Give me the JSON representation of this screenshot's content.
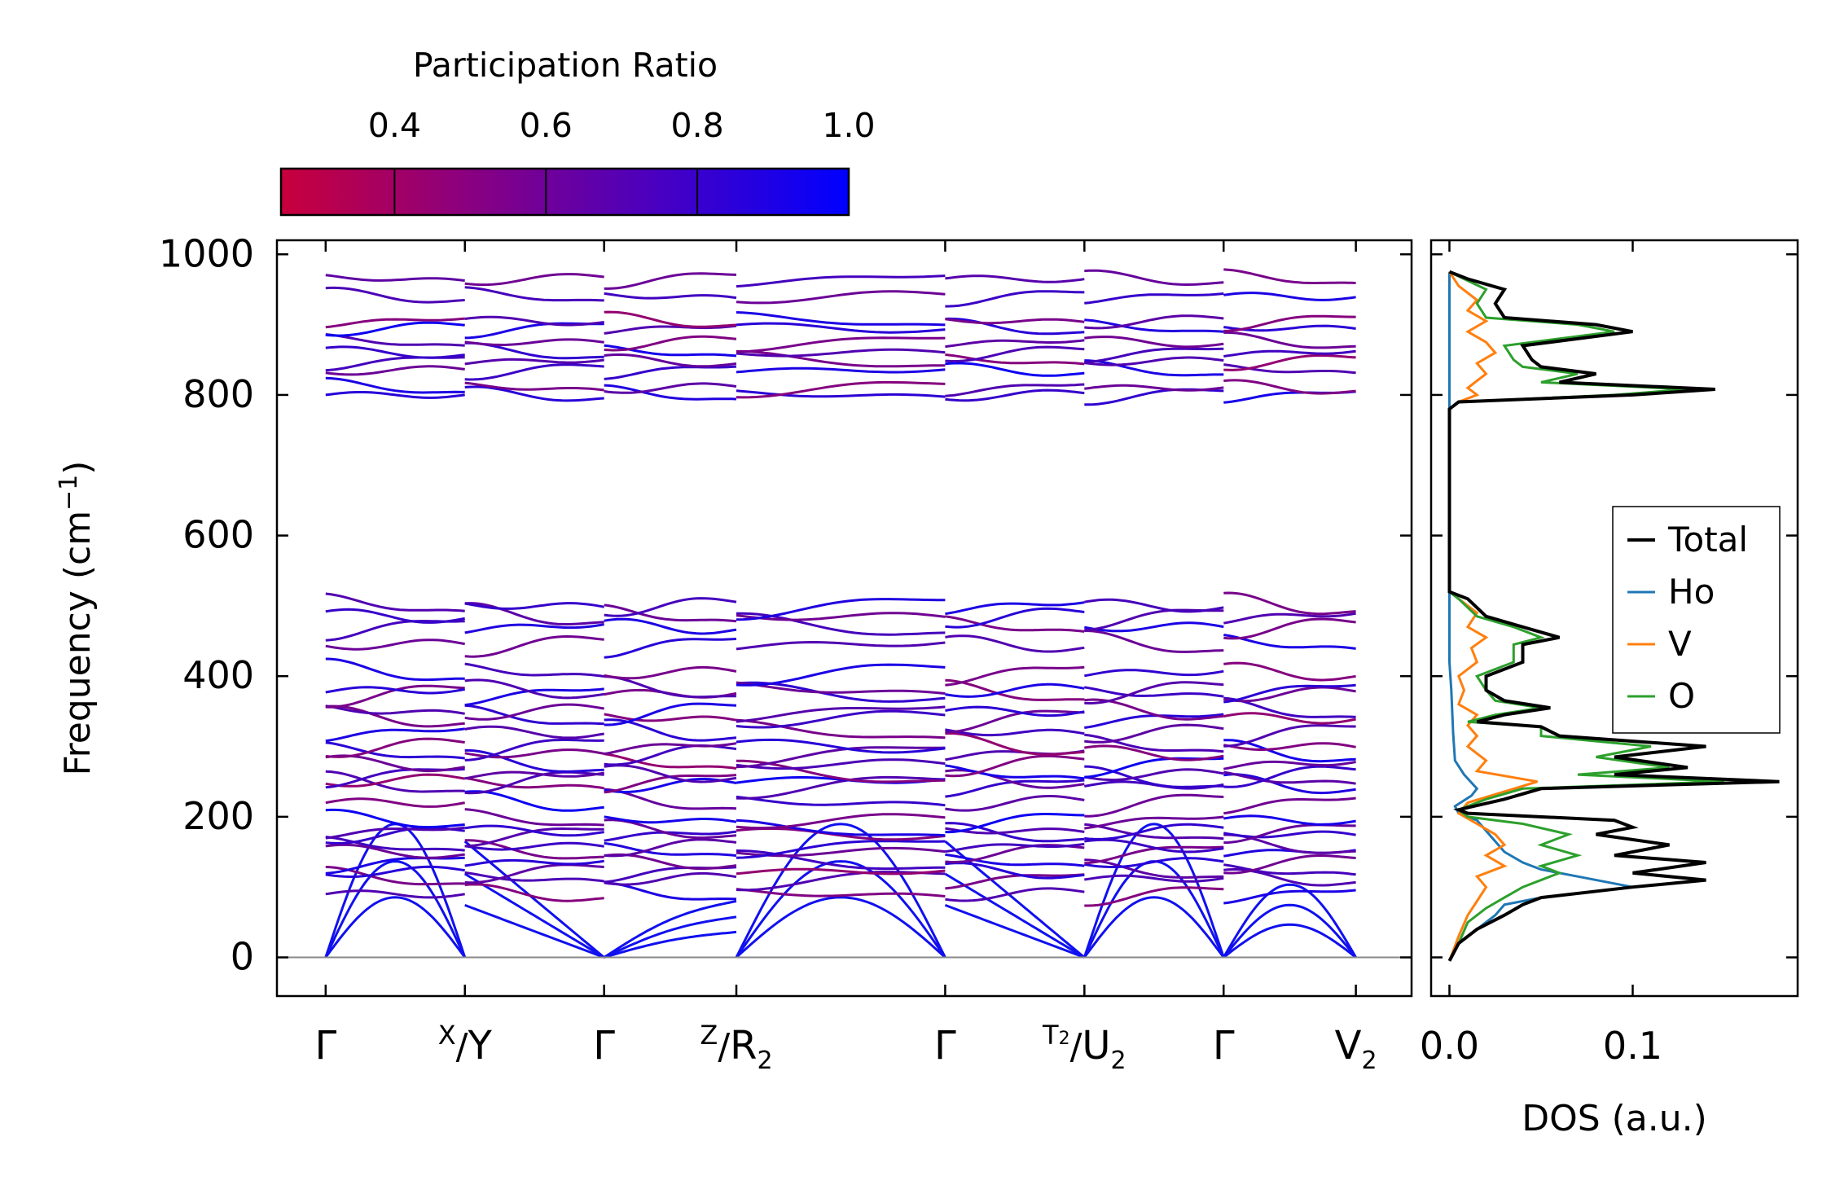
{
  "chart_data": [
    {
      "type": "line",
      "subtype": "phonon-band-structure",
      "ylabel": "Frequency (cm",
      "ylabel_sup": "−1",
      "ylabel_close": ")",
      "ylim": [
        -55,
        1020
      ],
      "xlim": [
        -0.07,
        1.56
      ],
      "yticks": [
        "0",
        "200",
        "400",
        "600",
        "800",
        "1000"
      ],
      "ytick_values": [
        0,
        200,
        400,
        600,
        800,
        1000
      ],
      "kpoints": [
        {
          "main": "Γ",
          "sub": "",
          "pos": 0
        },
        {
          "pre": "X",
          "main": "Y",
          "pos": 0.2
        },
        {
          "main": "Γ",
          "sub": "",
          "pos": 0.4
        },
        {
          "pre": "Z",
          "main": "R",
          "sub": "2",
          "pos": 0.59
        },
        {
          "main": "Γ",
          "sub": "",
          "pos": 0.89
        },
        {
          "pre": "T",
          "pre_sub": "2",
          "main": "U",
          "sub": "2",
          "pos": 1.09
        },
        {
          "main": "Γ",
          "sub": "",
          "pos": 1.29
        },
        {
          "main": "V",
          "sub": "2",
          "pos": 1.48
        }
      ],
      "segments": [
        [
          0,
          0.2
        ],
        [
          0.2,
          0.4
        ],
        [
          0.4,
          0.59
        ],
        [
          0.59,
          0.89
        ],
        [
          0.89,
          1.09
        ],
        [
          1.09,
          1.29
        ],
        [
          1.29,
          1.48
        ]
      ],
      "colorbar": {
        "title": "Participation Ratio",
        "range": [
          0.25,
          1.0
        ],
        "ticks": [
          "0.4",
          "0.6",
          "0.8",
          "1.0"
        ],
        "tick_values": [
          0.4,
          0.6,
          0.8,
          1.0
        ],
        "colors": [
          "#c8003c",
          "#0000ff"
        ]
      },
      "bands": {
        "acoustic_max": [
          [
            0,
            165,
            0
          ],
          [
            165,
            0,
            0
          ],
          [
            0,
            90,
            80
          ],
          [
            0,
            165,
            0
          ],
          [
            165,
            0,
            0
          ],
          [
            0,
            165,
            0
          ],
          [
            0,
            90,
            0
          ]
        ],
        "low_levels": [
          90,
          112,
          122,
          135,
          150,
          158,
          175,
          180,
          195
        ],
        "mid_levels": [
          220,
          245,
          252,
          260,
          275,
          290,
          300,
          320,
          340,
          350,
          375,
          380,
          405,
          445,
          470,
          485,
          500
        ],
        "high_levels": [
          800,
          810,
          835,
          848,
          860,
          875,
          895,
          905,
          940,
          965
        ],
        "participation": [
          0.7,
          0.55,
          0.85,
          0.9,
          0.6,
          0.75,
          0.8,
          0.7,
          0.95,
          0.5,
          0.72,
          0.65,
          0.85,
          0.55,
          0.78,
          0.68,
          0.82,
          0.6,
          0.9,
          0.7,
          0.74,
          0.58,
          0.88,
          0.66,
          0.8,
          0.62,
          0.92,
          0.52,
          0.7,
          0.45,
          0.76,
          0.6,
          0.84,
          0.5,
          0.9,
          0.55
        ]
      }
    },
    {
      "type": "line",
      "subtype": "density-of-states",
      "xlabel": "DOS (a.u.)",
      "xlim": [
        -0.01,
        0.19
      ],
      "ylim": [
        -55,
        1020
      ],
      "xticks": [
        "0.0",
        "0.1"
      ],
      "xtick_values": [
        0.0,
        0.1
      ],
      "legend_position": "center-right",
      "series": [
        {
          "name": "Total",
          "color": "#000000",
          "points": [
            [
              0,
              -5
            ],
            [
              0.005,
              20
            ],
            [
              0.015,
              40
            ],
            [
              0.03,
              60
            ],
            [
              0.04,
              75
            ],
            [
              0.05,
              85
            ],
            [
              0.1,
              100
            ],
            [
              0.14,
              110
            ],
            [
              0.1,
              120
            ],
            [
              0.14,
              135
            ],
            [
              0.09,
              145
            ],
            [
              0.12,
              160
            ],
            [
              0.08,
              175
            ],
            [
              0.1,
              185
            ],
            [
              0.09,
              195
            ],
            [
              0.01,
              205
            ],
            [
              0.005,
              210
            ],
            [
              0.03,
              225
            ],
            [
              0.05,
              240
            ],
            [
              0.18,
              250
            ],
            [
              0.09,
              260
            ],
            [
              0.13,
              270
            ],
            [
              0.09,
              285
            ],
            [
              0.14,
              300
            ],
            [
              0.06,
              315
            ],
            [
              0.05,
              328
            ],
            [
              0.015,
              335
            ],
            [
              0.03,
              345
            ],
            [
              0.055,
              355
            ],
            [
              0.03,
              365
            ],
            [
              0.02,
              380
            ],
            [
              0.02,
              400
            ],
            [
              0.04,
              420
            ],
            [
              0.04,
              445
            ],
            [
              0.06,
              455
            ],
            [
              0.04,
              470
            ],
            [
              0.02,
              485
            ],
            [
              0.01,
              510
            ],
            [
              0.0,
              520
            ],
            [
              0.0,
              780
            ],
            [
              0.005,
              790
            ],
            [
              0.1,
              800
            ],
            [
              0.145,
              808
            ],
            [
              0.06,
              818
            ],
            [
              0.08,
              830
            ],
            [
              0.05,
              840
            ],
            [
              0.045,
              850
            ],
            [
              0.04,
              870
            ],
            [
              0.1,
              890
            ],
            [
              0.08,
              900
            ],
            [
              0.03,
              910
            ],
            [
              0.025,
              930
            ],
            [
              0.03,
              950
            ],
            [
              0.01,
              965
            ],
            [
              0.0,
              975
            ]
          ]
        },
        {
          "name": "Ho",
          "color": "#1f77b4",
          "points": [
            [
              0,
              -5
            ],
            [
              0.005,
              20
            ],
            [
              0.015,
              40
            ],
            [
              0.025,
              60
            ],
            [
              0.03,
              75
            ],
            [
              0.05,
              85
            ],
            [
              0.1,
              100
            ],
            [
              0.07,
              115
            ],
            [
              0.05,
              125
            ],
            [
              0.04,
              135
            ],
            [
              0.03,
              150
            ],
            [
              0.025,
              165
            ],
            [
              0.02,
              180
            ],
            [
              0.015,
              195
            ],
            [
              0.005,
              205
            ],
            [
              0.003,
              215
            ],
            [
              0.012,
              230
            ],
            [
              0.015,
              240
            ],
            [
              0.008,
              260
            ],
            [
              0.003,
              280
            ],
            [
              0.002,
              320
            ],
            [
              0.001,
              380
            ],
            [
              0.0,
              420
            ],
            [
              0.0,
              780
            ],
            [
              0.0,
              975
            ]
          ]
        },
        {
          "name": "V",
          "color": "#ff7f0e",
          "points": [
            [
              0,
              -5
            ],
            [
              0.005,
              30
            ],
            [
              0.01,
              60
            ],
            [
              0.015,
              80
            ],
            [
              0.02,
              100
            ],
            [
              0.015,
              115
            ],
            [
              0.03,
              130
            ],
            [
              0.02,
              145
            ],
            [
              0.03,
              160
            ],
            [
              0.025,
              175
            ],
            [
              0.015,
              190
            ],
            [
              0.005,
              205
            ],
            [
              0.01,
              220
            ],
            [
              0.048,
              250
            ],
            [
              0.015,
              265
            ],
            [
              0.02,
              280
            ],
            [
              0.01,
              300
            ],
            [
              0.015,
              315
            ],
            [
              0.01,
              330
            ],
            [
              0.015,
              345
            ],
            [
              0.005,
              360
            ],
            [
              0.008,
              380
            ],
            [
              0.005,
              400
            ],
            [
              0.015,
              420
            ],
            [
              0.012,
              440
            ],
            [
              0.02,
              455
            ],
            [
              0.01,
              470
            ],
            [
              0.015,
              490
            ],
            [
              0.0,
              520
            ],
            [
              0.0,
              780
            ],
            [
              0.005,
              790
            ],
            [
              0.015,
              800
            ],
            [
              0.01,
              810
            ],
            [
              0.02,
              830
            ],
            [
              0.015,
              845
            ],
            [
              0.025,
              860
            ],
            [
              0.02,
              875
            ],
            [
              0.01,
              890
            ],
            [
              0.02,
              905
            ],
            [
              0.01,
              920
            ],
            [
              0.015,
              935
            ],
            [
              0.005,
              955
            ],
            [
              0.0,
              975
            ]
          ]
        },
        {
          "name": "O",
          "color": "#2ca02c",
          "points": [
            [
              0,
              -5
            ],
            [
              0.005,
              20
            ],
            [
              0.01,
              50
            ],
            [
              0.02,
              70
            ],
            [
              0.03,
              85
            ],
            [
              0.04,
              100
            ],
            [
              0.06,
              120
            ],
            [
              0.05,
              130
            ],
            [
              0.07,
              145
            ],
            [
              0.05,
              160
            ],
            [
              0.065,
              175
            ],
            [
              0.04,
              190
            ],
            [
              0.01,
              200
            ],
            [
              0.005,
              210
            ],
            [
              0.02,
              225
            ],
            [
              0.04,
              240
            ],
            [
              0.15,
              250
            ],
            [
              0.07,
              260
            ],
            [
              0.12,
              270
            ],
            [
              0.08,
              285
            ],
            [
              0.11,
              300
            ],
            [
              0.05,
              315
            ],
            [
              0.05,
              328
            ],
            [
              0.01,
              335
            ],
            [
              0.025,
              345
            ],
            [
              0.05,
              355
            ],
            [
              0.025,
              365
            ],
            [
              0.02,
              380
            ],
            [
              0.015,
              400
            ],
            [
              0.035,
              420
            ],
            [
              0.035,
              445
            ],
            [
              0.05,
              455
            ],
            [
              0.035,
              470
            ],
            [
              0.015,
              485
            ],
            [
              0.005,
              510
            ],
            [
              0.0,
              520
            ],
            [
              0.0,
              780
            ],
            [
              0.005,
              790
            ],
            [
              0.09,
              800
            ],
            [
              0.13,
              808
            ],
            [
              0.05,
              818
            ],
            [
              0.07,
              830
            ],
            [
              0.04,
              840
            ],
            [
              0.035,
              850
            ],
            [
              0.03,
              870
            ],
            [
              0.09,
              890
            ],
            [
              0.07,
              900
            ],
            [
              0.02,
              910
            ],
            [
              0.015,
              930
            ],
            [
              0.02,
              950
            ],
            [
              0.008,
              965
            ],
            [
              0.0,
              975
            ]
          ]
        }
      ]
    }
  ]
}
